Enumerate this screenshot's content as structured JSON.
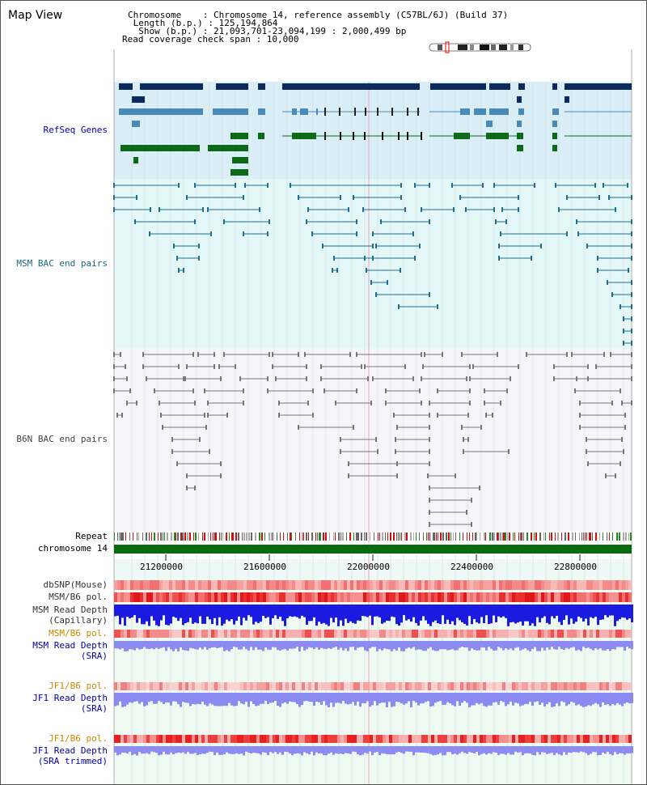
{
  "title": "Map View",
  "header": {
    "chromosome_line": "Chromosome    : Chromosome 14, reference assembly (C57BL/6J) (Build 37)",
    "length_line": " Length (b.p.) : 125,194,864",
    "show_line": "  Show (b.p.) : 21,093,701-23,094,199 : 2,000,499 bp",
    "coverage_line": "Read coverage check span : 10,000"
  },
  "tracks": {
    "refseq": "RefSeq Genes",
    "msm_bac": "MSM BAC end pairs",
    "b6n_bac": "B6N BAC end pairs",
    "repeat": "Repeat",
    "chromosome": "chromosome 14",
    "dbsnp": "dbSNP(Mouse)",
    "msm_b6_pol": "MSM/B6 pol.",
    "msm_read_depth_cap_1": "MSM Read Depth",
    "msm_read_depth_cap_2": "(Capillary)",
    "msm_b6_pol_sra": "MSM/B6 pol.",
    "msm_read_depth_sra_1": "MSM Read Depth",
    "msm_read_depth_sra_2": "(SRA)",
    "jf1_b6_pol": "JF1/B6 pol.",
    "jf1_read_depth_1": "JF1 Read Depth",
    "jf1_read_depth_2": "(SRA)",
    "jf1_b6_pol_2": "JF1/B6 pol.",
    "jf1_read_depth_trim_1": "JF1 Read Depth",
    "jf1_read_depth_trim_2": "(SRA trimmed)"
  },
  "axis_ticks": [
    "21200000",
    "21600000",
    "22000000",
    "22400000",
    "22800000"
  ],
  "colors": {
    "refseq_bg": "#daeef8",
    "msm_bg": "#e4f8f8",
    "b6n_bg": "#f4f4f8",
    "gene_navy": "#0b2a5e",
    "gene_steel": "#4a8ab8",
    "gene_green": "#0b6a18",
    "msm_line": "#1e6e8e",
    "b6n_line": "#777777",
    "chrom_green": "#0a6a12",
    "label_blue": "#0000aa",
    "label_orange": "#cc8800",
    "label_teal": "#1a6680"
  }
}
